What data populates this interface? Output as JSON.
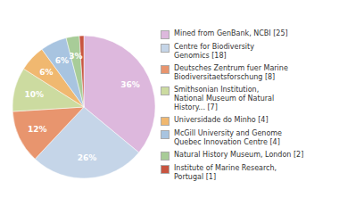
{
  "chart_data": {
    "type": "pie",
    "categories": [
      "Mined from GenBank, NCBI [25]",
      "Centre for Biodiversity\nGenomics [18]",
      "Deutsches Zentrum fuer Marine\nBiodiversitaetsforschung [8]",
      "Smithsonian Institution,\nNational Museum of Natural\nHistory... [7]",
      "Universidade do Minho [4]",
      "McGill University and Genome\nQuebec Innovation Centre [4]",
      "Natural History Museum, London [2]",
      "Institute of Marine Research,\nPortugal [1]"
    ],
    "values": [
      36,
      26,
      12,
      10,
      6,
      6,
      3,
      1
    ],
    "value_labels": [
      "36%",
      "26%",
      "12%",
      "10%",
      "6%",
      "6%",
      "3%",
      null
    ],
    "colors": [
      "#ddb8dd",
      "#c5d5e8",
      "#e8956e",
      "#ccdba0",
      "#f0b870",
      "#a8c4e0",
      "#a8cc98",
      "#c85540"
    ],
    "data_labels": true,
    "legend": "right"
  }
}
